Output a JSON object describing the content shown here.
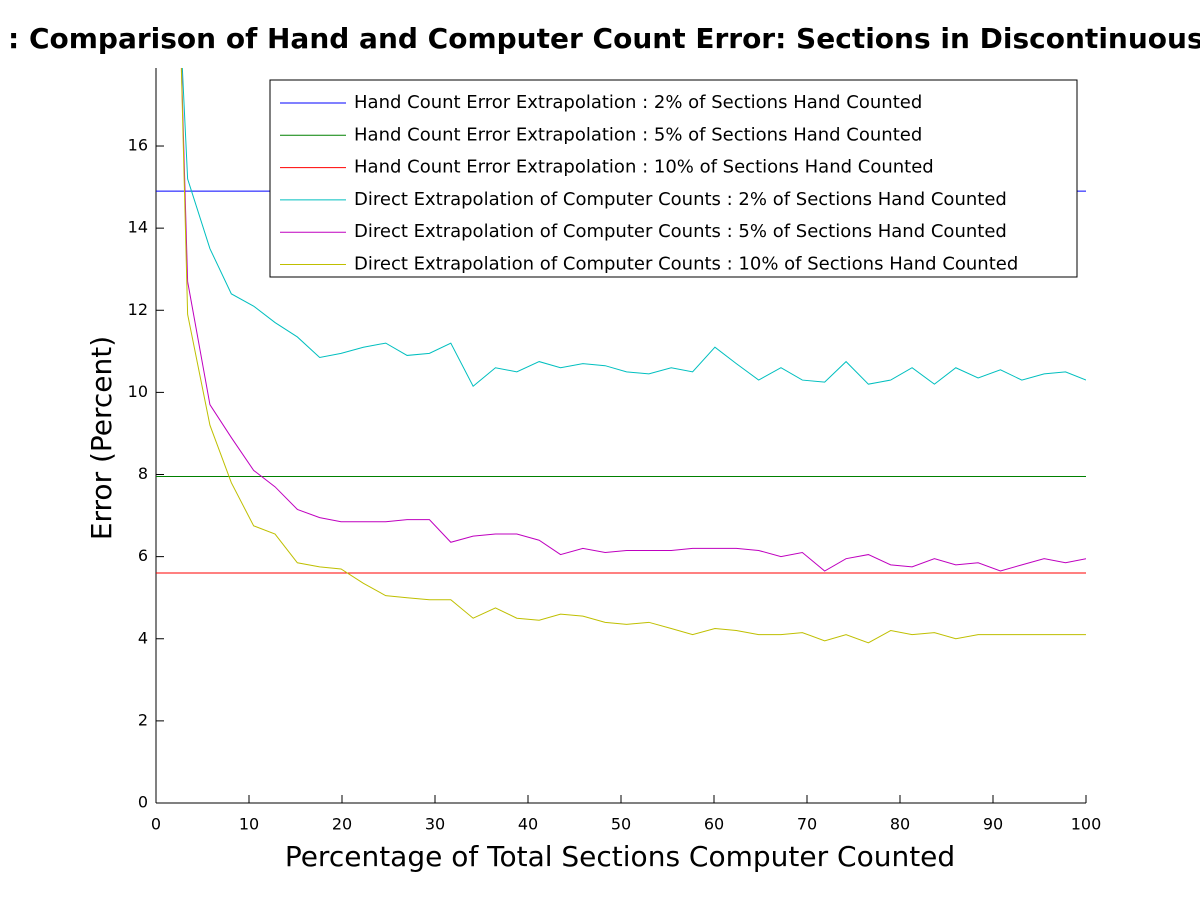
{
  "chart_data": {
    "type": "line",
    "title": ": Comparison of Hand and Computer Count Error: Sections in Discontinuous",
    "xlabel": "Percentage of Total Sections Computer Counted",
    "ylabel": "Error (Percent)",
    "xlim": [
      0,
      100
    ],
    "ylim": [
      0,
      17.9
    ],
    "xticks": [
      0,
      10,
      20,
      30,
      40,
      50,
      60,
      70,
      80,
      90,
      100
    ],
    "yticks": [
      0,
      2,
      4,
      6,
      8,
      10,
      12,
      14,
      16
    ],
    "grid": false,
    "legend": "upper right",
    "series": [
      {
        "name": "Hand Count Error Extrapolation : 2% of Sections Hand Counted",
        "color": "#0000ff",
        "x": [
          0,
          100
        ],
        "values": [
          14.9,
          14.9
        ]
      },
      {
        "name": "Hand Count Error Extrapolation : 5% of Sections Hand Counted",
        "color": "#008000",
        "x": [
          0,
          100
        ],
        "values": [
          7.95,
          7.95
        ]
      },
      {
        "name": "Hand Count Error Extrapolation : 10% of Sections Hand Counted",
        "color": "#ff0000",
        "x": [
          0,
          100
        ],
        "values": [
          5.6,
          5.6
        ]
      },
      {
        "name": "Direct Extrapolation of Computer Counts : 2% of Sections Hand Counted",
        "color": "#00bfbf",
        "x": [
          2.6,
          3.4,
          5.8,
          8.1,
          10.5,
          12.8,
          15.2,
          17.6,
          19.9,
          22.3,
          24.7,
          27.0,
          29.4,
          31.7,
          34.1,
          36.5,
          38.8,
          41.2,
          43.5,
          45.9,
          48.3,
          50.6,
          53.0,
          55.4,
          57.7,
          60.1,
          62.4,
          64.8,
          67.2,
          69.5,
          71.9,
          74.2,
          76.6,
          79.0,
          81.3,
          83.7,
          86.0,
          88.4,
          90.8,
          93.1,
          95.5,
          97.8,
          100
        ],
        "values": [
          19,
          15.2,
          13.5,
          12.4,
          12.1,
          11.7,
          11.35,
          10.85,
          10.95,
          11.1,
          11.2,
          10.9,
          10.95,
          11.2,
          10.15,
          10.6,
          10.5,
          10.75,
          10.6,
          10.7,
          10.65,
          10.5,
          10.45,
          10.6,
          10.5,
          11.1,
          10.7,
          10.3,
          10.6,
          10.3,
          10.25,
          10.75,
          10.2,
          10.3,
          10.6,
          10.2,
          10.6,
          10.35,
          10.55,
          10.3,
          10.45,
          10.5,
          10.3
        ]
      },
      {
        "name": "Direct Extrapolation of Computer Counts : 5% of Sections Hand Counted",
        "color": "#bf00bf",
        "x": [
          2.6,
          3.4,
          5.8,
          8.1,
          10.5,
          12.8,
          15.2,
          17.6,
          19.9,
          22.3,
          24.7,
          27.0,
          29.4,
          31.7,
          34.1,
          36.5,
          38.8,
          41.2,
          43.5,
          45.9,
          48.3,
          50.6,
          53.0,
          55.4,
          57.7,
          60.1,
          62.4,
          64.8,
          67.2,
          69.5,
          71.9,
          74.2,
          76.6,
          79.0,
          81.3,
          83.7,
          86.0,
          88.4,
          90.8,
          93.1,
          95.5,
          97.8,
          100
        ],
        "values": [
          19,
          12.7,
          9.7,
          8.9,
          8.1,
          7.7,
          7.15,
          6.95,
          6.85,
          6.85,
          6.85,
          6.9,
          6.9,
          6.35,
          6.5,
          6.55,
          6.55,
          6.4,
          6.05,
          6.2,
          6.1,
          6.15,
          6.15,
          6.15,
          6.2,
          6.2,
          6.2,
          6.15,
          6.0,
          6.1,
          5.65,
          5.95,
          6.05,
          5.8,
          5.75,
          5.95,
          5.8,
          5.85,
          5.65,
          5.8,
          5.95,
          5.85,
          5.95
        ]
      },
      {
        "name": "Direct Extrapolation of Computer Counts : 10% of Sections Hand Counted",
        "color": "#bfbf00",
        "x": [
          2.6,
          3.4,
          5.8,
          8.1,
          10.5,
          12.8,
          15.2,
          17.6,
          19.9,
          22.3,
          24.7,
          27.0,
          29.4,
          31.7,
          34.1,
          36.5,
          38.8,
          41.2,
          43.5,
          45.9,
          48.3,
          50.6,
          53.0,
          55.4,
          57.7,
          60.1,
          62.4,
          64.8,
          67.2,
          69.5,
          71.9,
          74.2,
          76.6,
          79.0,
          81.3,
          83.7,
          86.0,
          88.4,
          90.8,
          93.1,
          95.5,
          97.8,
          100
        ],
        "values": [
          19,
          11.9,
          9.2,
          7.8,
          6.75,
          6.55,
          5.85,
          5.75,
          5.7,
          5.35,
          5.05,
          5.0,
          4.95,
          4.95,
          4.5,
          4.75,
          4.5,
          4.45,
          4.6,
          4.55,
          4.4,
          4.35,
          4.4,
          4.25,
          4.1,
          4.25,
          4.2,
          4.1,
          4.1,
          4.15,
          3.95,
          4.1,
          3.9,
          4.2,
          4.1,
          4.15,
          4.0,
          4.1,
          4.1,
          4.1,
          4.1,
          4.1,
          4.1
        ]
      }
    ]
  }
}
